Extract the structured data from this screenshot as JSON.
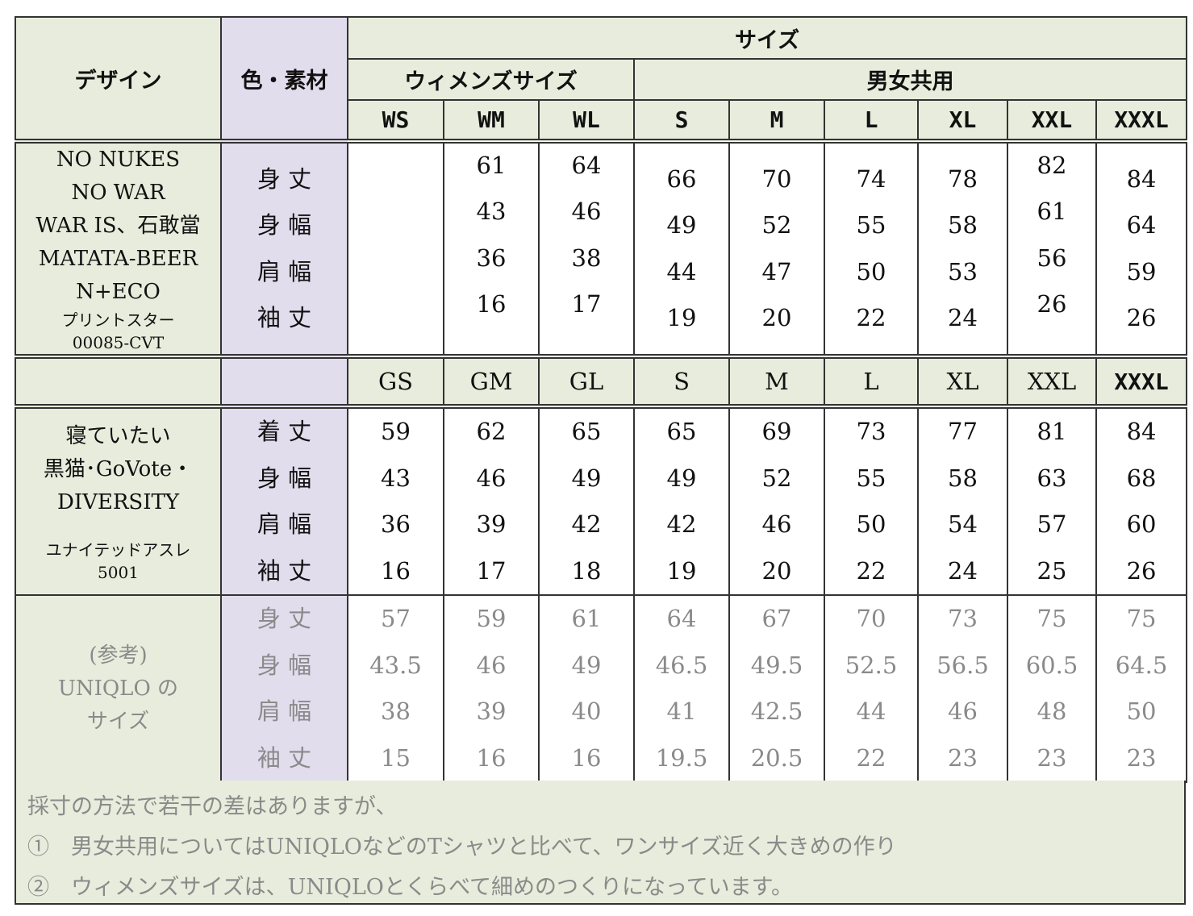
{
  "header": {
    "design": "デザイン",
    "color_material": "色・素材",
    "size": "サイズ",
    "womens": "ウィメンズサイズ",
    "unisex": "男女共用",
    "sizes1": [
      "WS",
      "WM",
      "WL",
      "S",
      "M",
      "L",
      "XL",
      "XXL",
      "XXXL"
    ]
  },
  "block1": {
    "designs": [
      "NO NUKES",
      "NO WAR",
      "WAR IS、石敢當",
      "MATATA-BEER",
      "N+ECO"
    ],
    "maker": "プリントスター",
    "model": "00085-CVT",
    "labels": [
      "身 丈",
      "身 幅",
      "肩 幅",
      "袖 丈"
    ],
    "values": [
      [
        "",
        "",
        "",
        ""
      ],
      [
        "61",
        "43",
        "36",
        "16"
      ],
      [
        "64",
        "46",
        "38",
        "17"
      ],
      [
        "66",
        "49",
        "44",
        "19"
      ],
      [
        "70",
        "52",
        "47",
        "20"
      ],
      [
        "74",
        "55",
        "50",
        "22"
      ],
      [
        "78",
        "58",
        "53",
        "24"
      ],
      [
        "82",
        "61",
        "56",
        "26"
      ],
      [
        "84",
        "64",
        "59",
        "26"
      ]
    ]
  },
  "sizes2": [
    "GS",
    "GM",
    "GL",
    "S",
    "M",
    "L",
    "XL",
    "XXL",
    "XXXL"
  ],
  "block2": {
    "designs": [
      "寝ていたい",
      "黒猫･GoVote・",
      "DIVERSITY"
    ],
    "maker": "ユナイテッドアスレ",
    "model": "5001",
    "labels": [
      "着 丈",
      "身 幅",
      "肩 幅",
      "袖 丈"
    ],
    "values": [
      [
        "59",
        "43",
        "36",
        "16"
      ],
      [
        "62",
        "46",
        "39",
        "17"
      ],
      [
        "65",
        "49",
        "42",
        "18"
      ],
      [
        "65",
        "49",
        "42",
        "19"
      ],
      [
        "69",
        "52",
        "46",
        "20"
      ],
      [
        "73",
        "55",
        "50",
        "22"
      ],
      [
        "77",
        "58",
        "54",
        "24"
      ],
      [
        "81",
        "63",
        "57",
        "25"
      ],
      [
        "84",
        "68",
        "60",
        "26"
      ]
    ]
  },
  "block3": {
    "designs": [
      "(参考)",
      "UNIQLO の",
      "サイズ"
    ],
    "labels": [
      "身 丈",
      "身 幅",
      "肩 幅",
      "袖 丈"
    ],
    "values": [
      [
        "57",
        "43.5",
        "38",
        "15"
      ],
      [
        "59",
        "46",
        "39",
        "16"
      ],
      [
        "61",
        "49",
        "40",
        "16"
      ],
      [
        "64",
        "46.5",
        "41",
        "19.5"
      ],
      [
        "67",
        "49.5",
        "42.5",
        "20.5"
      ],
      [
        "70",
        "52.5",
        "44",
        "22"
      ],
      [
        "73",
        "56.5",
        "46",
        "23"
      ],
      [
        "75",
        "60.5",
        "48",
        "23"
      ],
      [
        "75",
        "64.5",
        "50",
        "23"
      ]
    ]
  },
  "notes": [
    "採寸の方法で若干の差はありますが、",
    "①　男女共用についてはUNIQLOなどのTシャツと比べて、ワンサイズ近く大きめの作り",
    "②　ウィメンズサイズは、UNIQLOとくらべて細めのつくりになっています。"
  ]
}
